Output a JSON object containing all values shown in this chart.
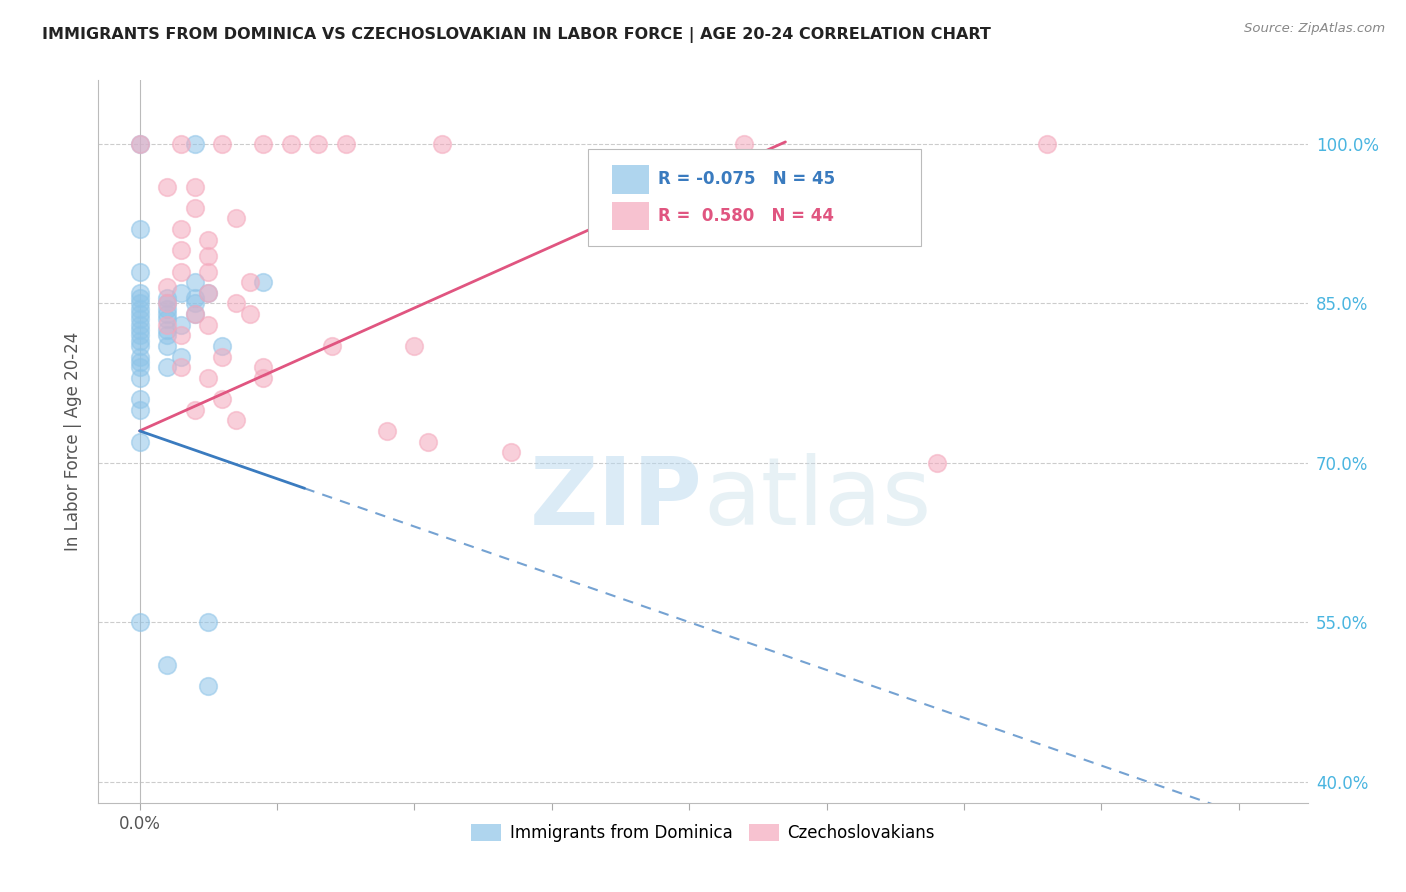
{
  "title": "IMMIGRANTS FROM DOMINICA VS CZECHOSLOVAKIAN IN LABOR FORCE | AGE 20-24 CORRELATION CHART",
  "source": "Source: ZipAtlas.com",
  "ylabel": "In Labor Force | Age 20-24",
  "dominica_color": "#8ec4e8",
  "czech_color": "#f4a8bc",
  "dominica_line_color": "#3a7bbf",
  "czech_line_color": "#e05580",
  "dominica_scatter": [
    [
      0.0,
      1.0
    ],
    [
      0.004,
      1.0
    ],
    [
      0.0,
      0.92
    ],
    [
      0.0,
      0.88
    ],
    [
      0.004,
      0.87
    ],
    [
      0.009,
      0.87
    ],
    [
      0.0,
      0.86
    ],
    [
      0.003,
      0.86
    ],
    [
      0.005,
      0.86
    ],
    [
      0.0,
      0.855
    ],
    [
      0.002,
      0.855
    ],
    [
      0.004,
      0.855
    ],
    [
      0.0,
      0.85
    ],
    [
      0.002,
      0.85
    ],
    [
      0.004,
      0.85
    ],
    [
      0.0,
      0.845
    ],
    [
      0.002,
      0.845
    ],
    [
      0.0,
      0.84
    ],
    [
      0.002,
      0.84
    ],
    [
      0.004,
      0.84
    ],
    [
      0.0,
      0.835
    ],
    [
      0.002,
      0.835
    ],
    [
      0.0,
      0.83
    ],
    [
      0.003,
      0.83
    ],
    [
      0.0,
      0.825
    ],
    [
      0.002,
      0.825
    ],
    [
      0.0,
      0.82
    ],
    [
      0.002,
      0.82
    ],
    [
      0.0,
      0.815
    ],
    [
      0.0,
      0.81
    ],
    [
      0.002,
      0.81
    ],
    [
      0.006,
      0.81
    ],
    [
      0.0,
      0.8
    ],
    [
      0.003,
      0.8
    ],
    [
      0.0,
      0.795
    ],
    [
      0.0,
      0.79
    ],
    [
      0.002,
      0.79
    ],
    [
      0.0,
      0.78
    ],
    [
      0.0,
      0.76
    ],
    [
      0.0,
      0.75
    ],
    [
      0.0,
      0.72
    ],
    [
      0.0,
      0.55
    ],
    [
      0.005,
      0.55
    ],
    [
      0.002,
      0.51
    ],
    [
      0.005,
      0.49
    ]
  ],
  "czech_scatter": [
    [
      0.0,
      1.0
    ],
    [
      0.003,
      1.0
    ],
    [
      0.006,
      1.0
    ],
    [
      0.009,
      1.0
    ],
    [
      0.011,
      1.0
    ],
    [
      0.013,
      1.0
    ],
    [
      0.015,
      1.0
    ],
    [
      0.022,
      1.0
    ],
    [
      0.044,
      1.0
    ],
    [
      0.066,
      1.0
    ],
    [
      0.002,
      0.96
    ],
    [
      0.004,
      0.96
    ],
    [
      0.004,
      0.94
    ],
    [
      0.007,
      0.93
    ],
    [
      0.003,
      0.92
    ],
    [
      0.005,
      0.91
    ],
    [
      0.003,
      0.9
    ],
    [
      0.005,
      0.895
    ],
    [
      0.003,
      0.88
    ],
    [
      0.005,
      0.88
    ],
    [
      0.008,
      0.87
    ],
    [
      0.002,
      0.865
    ],
    [
      0.005,
      0.86
    ],
    [
      0.002,
      0.85
    ],
    [
      0.007,
      0.85
    ],
    [
      0.004,
      0.84
    ],
    [
      0.008,
      0.84
    ],
    [
      0.002,
      0.83
    ],
    [
      0.005,
      0.83
    ],
    [
      0.003,
      0.82
    ],
    [
      0.014,
      0.81
    ],
    [
      0.02,
      0.81
    ],
    [
      0.006,
      0.8
    ],
    [
      0.003,
      0.79
    ],
    [
      0.009,
      0.79
    ],
    [
      0.005,
      0.78
    ],
    [
      0.009,
      0.78
    ],
    [
      0.006,
      0.76
    ],
    [
      0.004,
      0.75
    ],
    [
      0.007,
      0.74
    ],
    [
      0.018,
      0.73
    ],
    [
      0.021,
      0.72
    ],
    [
      0.027,
      0.71
    ],
    [
      0.058,
      0.7
    ]
  ],
  "xlim": [
    -0.003,
    0.085
  ],
  "ylim": [
    0.38,
    1.06
  ],
  "yticks": [
    0.4,
    0.55,
    0.7,
    0.85,
    1.0
  ],
  "ytick_labels": [
    "40.0%",
    "55.0%",
    "70.0%",
    "85.0%",
    "100.0%"
  ],
  "xticks": [
    0.0,
    0.01,
    0.02,
    0.03,
    0.04,
    0.05,
    0.06,
    0.07,
    0.08
  ],
  "watermark_zip": "ZIP",
  "watermark_atlas": "atlas",
  "background_color": "#ffffff"
}
